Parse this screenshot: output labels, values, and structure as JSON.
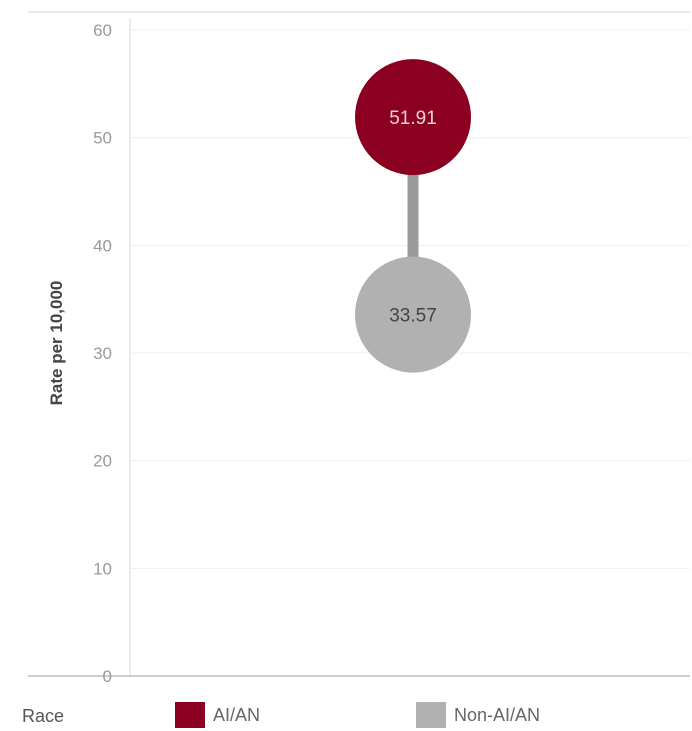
{
  "chart_data": {
    "type": "dumbbell",
    "ylabel": "Rate per 10,000",
    "ylim": [
      0,
      60
    ],
    "yticks": [
      0,
      10,
      20,
      30,
      40,
      50,
      60
    ],
    "grid": true,
    "series": [
      {
        "name": "AI/AN",
        "value": 51.91,
        "label": "51.91",
        "color": "#8b0020",
        "label_color": "#f0d0d6"
      },
      {
        "name": "Non-AI/AN",
        "value": 33.57,
        "label": "33.57",
        "color": "#b1b1b1",
        "label_color": "#444444"
      }
    ],
    "connector_color": "#9b9b9b"
  },
  "legend": {
    "title": "Race",
    "items": [
      {
        "label": "AI/AN",
        "color": "#8b0020"
      },
      {
        "label": "Non-AI/AN",
        "color": "#b1b1b1"
      }
    ]
  }
}
